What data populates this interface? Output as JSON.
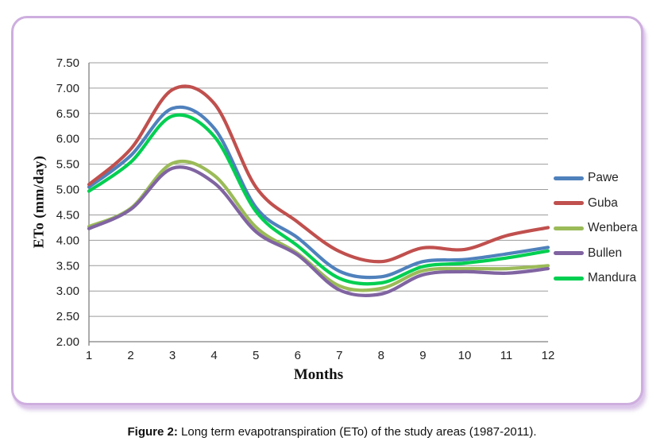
{
  "figure": {
    "caption_label": "Figure 2:",
    "caption_text": " Long term evapotranspiration (ETo) of the study areas (1987-2011)."
  },
  "chart_data": {
    "type": "line",
    "title": "",
    "xlabel": "Months",
    "ylabel": "ETo (mm/day)",
    "categories": [
      1,
      2,
      3,
      4,
      5,
      6,
      7,
      8,
      9,
      10,
      11,
      12
    ],
    "ylim": [
      2.0,
      7.5
    ],
    "ytick_step": 0.5,
    "ytick_labels": [
      "2.00",
      "2.50",
      "3.00",
      "3.50",
      "4.00",
      "4.50",
      "5.00",
      "5.50",
      "6.00",
      "6.50",
      "7.00",
      "7.50"
    ],
    "grid": true,
    "line_style": "smooth",
    "legend_position": "right",
    "axis_color": "#808080",
    "grid_color": "#9c9c9c",
    "tick_label_color": "#1f1f1f",
    "series": [
      {
        "name": "Pawe",
        "color": "#4F81BD",
        "values": [
          5.05,
          5.67,
          6.6,
          6.21,
          4.65,
          4.05,
          3.39,
          3.28,
          3.58,
          3.62,
          3.73,
          3.86
        ]
      },
      {
        "name": "Guba",
        "color": "#C0504D",
        "values": [
          5.1,
          5.8,
          6.97,
          6.7,
          5.05,
          4.36,
          3.78,
          3.58,
          3.85,
          3.82,
          4.09,
          4.25
        ]
      },
      {
        "name": "Wenbera",
        "color": "#9BBB59",
        "values": [
          4.27,
          4.63,
          5.52,
          5.28,
          4.26,
          3.74,
          3.1,
          3.05,
          3.4,
          3.44,
          3.44,
          3.5
        ]
      },
      {
        "name": "Bullen",
        "color": "#8064A2",
        "values": [
          4.23,
          4.61,
          5.42,
          5.13,
          4.17,
          3.71,
          3.02,
          2.94,
          3.32,
          3.38,
          3.35,
          3.44
        ]
      },
      {
        "name": "Mandura",
        "color": "#00CF52",
        "values": [
          4.97,
          5.54,
          6.45,
          6.05,
          4.57,
          3.89,
          3.25,
          3.16,
          3.48,
          3.55,
          3.65,
          3.79
        ]
      }
    ]
  }
}
